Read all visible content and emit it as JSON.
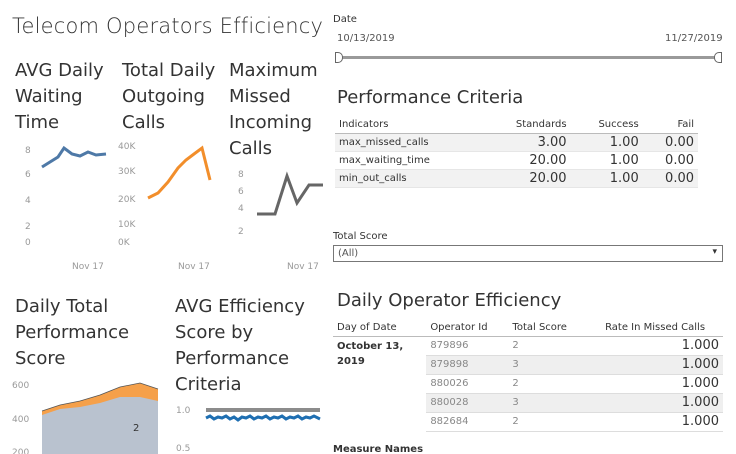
{
  "title": "Telecom Operators Efficiency",
  "avg_waiting": {
    "title_lines": [
      "AVG Daily",
      "Waiting",
      "Time"
    ],
    "yticks": [
      "8",
      "6",
      "4",
      "2",
      "0"
    ],
    "xlabel": "Nov 17",
    "color": "#4e79a7"
  },
  "outgoing": {
    "title_lines": [
      "Total Daily",
      "Outgoing",
      "Calls"
    ],
    "yticks": [
      "40K",
      "30K",
      "20K",
      "10K",
      "0K"
    ],
    "xlabel": "Nov 17",
    "color": "#f28e2b"
  },
  "missed": {
    "title_lines": [
      "Maximum",
      "Missed",
      "Incoming",
      "Calls"
    ],
    "yticks": [
      "8",
      "6",
      "4",
      "2"
    ],
    "xlabel": "Nov 17",
    "color": "#666666"
  },
  "date_filter": {
    "label": "Date",
    "start": "10/13/2019",
    "end": "11/27/2019"
  },
  "criteria": {
    "title": "Performance Criteria",
    "headers": [
      "Indicators",
      "Standards",
      "Success",
      "Fail"
    ],
    "rows": [
      [
        "max_missed_calls",
        "3.00",
        "1.00",
        "0.00"
      ],
      [
        "max_waiting_time",
        "20.00",
        "1.00",
        "0.00"
      ],
      [
        "min_out_calls",
        "20.00",
        "1.00",
        "0.00"
      ]
    ]
  },
  "total_score_filter": {
    "label": "Total Score",
    "value": "(All)"
  },
  "daily_eff": {
    "title": "Daily Operator Efficiency",
    "headers": [
      "Day of Date",
      "Operator Id",
      "Total Score",
      "Rate In Missed Calls"
    ],
    "day_lines": [
      "October 13,",
      "2019"
    ],
    "rows": [
      [
        "879896",
        "2",
        "1.000"
      ],
      [
        "879898",
        "3",
        "1.000"
      ],
      [
        "880026",
        "2",
        "1.000"
      ],
      [
        "880028",
        "3",
        "1.000"
      ],
      [
        "882684",
        "2",
        "1.000"
      ]
    ]
  },
  "daily_total": {
    "title_lines": [
      "Daily Total",
      "Performance",
      "Score"
    ],
    "yticks": [
      "600",
      "400",
      "200"
    ],
    "annotation": "2",
    "colors": {
      "top": "#f5a04a",
      "bottom": "#b9c2cf"
    }
  },
  "avg_eff": {
    "title_lines": [
      "AVG Efficiency",
      "Score by",
      "Performance",
      "Criteria"
    ],
    "yticks": [
      "1.0",
      "0.5"
    ],
    "colors": {
      "ref": "#8c8c8c",
      "series": "#1f6fb2"
    }
  },
  "measure_names_label": "Measure Names"
}
